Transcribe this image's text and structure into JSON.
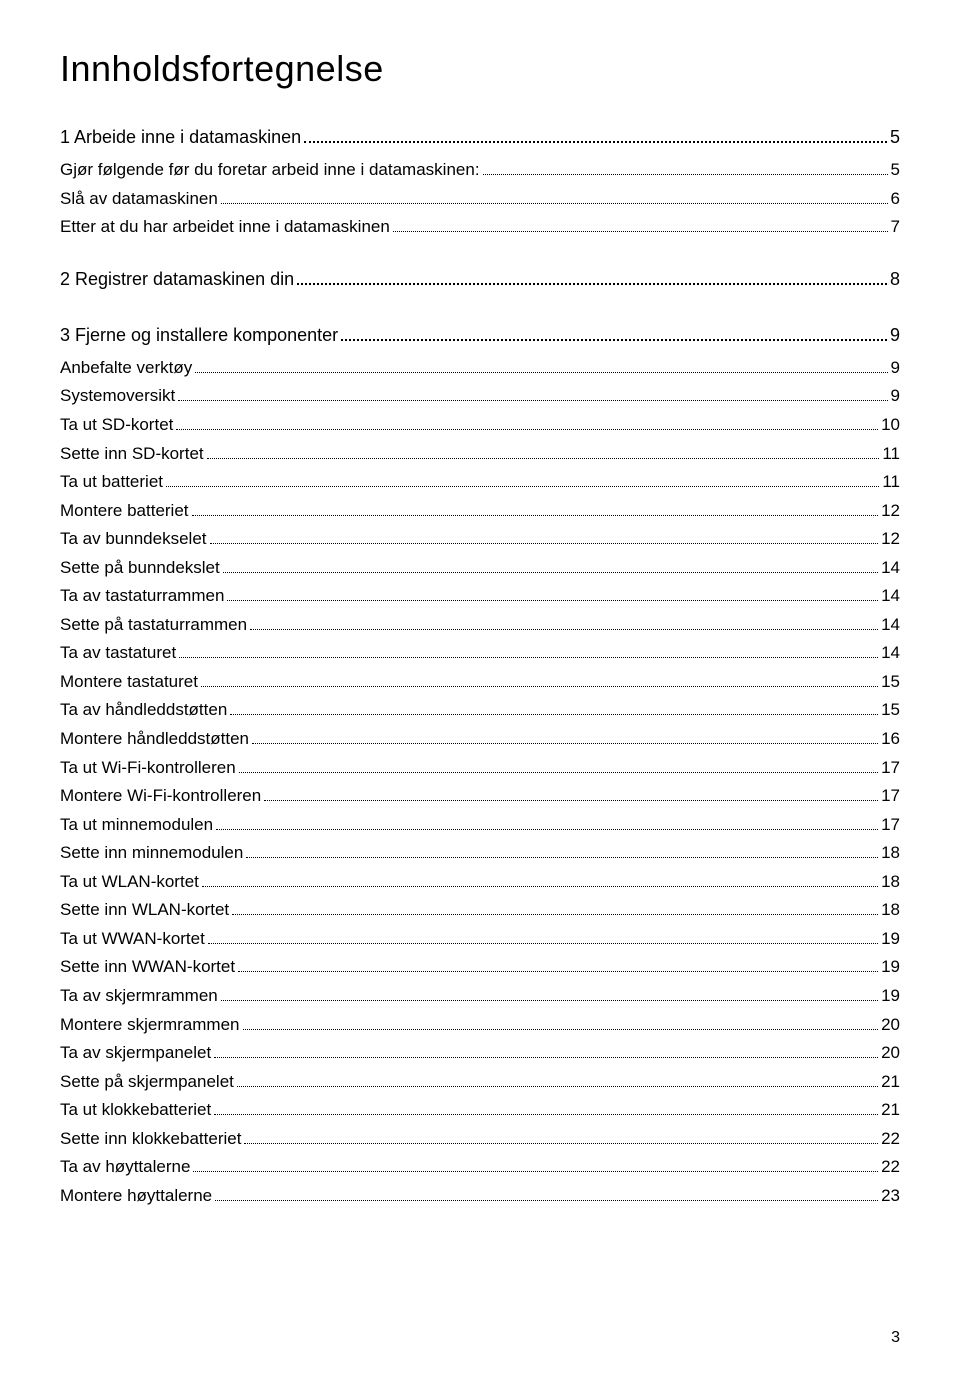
{
  "title": "Innholdsfortegnelse",
  "page_number": "3",
  "sections": [
    {
      "number": "1",
      "label": "Arbeide inne i datamaskinen",
      "page": "5",
      "items": [
        {
          "label": "Gjør følgende før du foretar arbeid inne i datamaskinen:",
          "page": "5"
        },
        {
          "label": "Slå av datamaskinen",
          "page": "6"
        },
        {
          "label": "Etter at du har arbeidet inne i datamaskinen",
          "page": "7"
        }
      ]
    },
    {
      "number": "2",
      "label": "Registrer datamaskinen din",
      "page": "8",
      "items": []
    },
    {
      "number": "3",
      "label": "Fjerne og installere komponenter",
      "page": "9",
      "items": [
        {
          "label": "Anbefalte verktøy",
          "page": "9"
        },
        {
          "label": "Systemoversikt",
          "page": "9"
        },
        {
          "label": "Ta ut SD-kortet",
          "page": "10"
        },
        {
          "label": "Sette inn SD-kortet",
          "page": "11"
        },
        {
          "label": "Ta ut batteriet",
          "page": "11"
        },
        {
          "label": "Montere batteriet",
          "page": "12"
        },
        {
          "label": "Ta av bunndekselet",
          "page": "12"
        },
        {
          "label": "Sette på bunndekslet",
          "page": "14"
        },
        {
          "label": "Ta av tastaturrammen",
          "page": "14"
        },
        {
          "label": "Sette på tastaturrammen",
          "page": "14"
        },
        {
          "label": "Ta av tastaturet",
          "page": "14"
        },
        {
          "label": "Montere tastaturet",
          "page": "15"
        },
        {
          "label": "Ta av håndleddstøtten",
          "page": "15"
        },
        {
          "label": "Montere håndleddstøtten",
          "page": "16"
        },
        {
          "label": "Ta ut Wi-Fi-kontrolleren",
          "page": "17"
        },
        {
          "label": "Montere Wi-Fi-kontrolleren",
          "page": "17"
        },
        {
          "label": "Ta ut minnemodulen",
          "page": "17"
        },
        {
          "label": "Sette inn minnemodulen",
          "page": "18"
        },
        {
          "label": "Ta ut WLAN-kortet",
          "page": "18"
        },
        {
          "label": "Sette inn WLAN-kortet",
          "page": "18"
        },
        {
          "label": "Ta ut WWAN-kortet",
          "page": "19"
        },
        {
          "label": "Sette inn WWAN-kortet",
          "page": "19"
        },
        {
          "label": "Ta av skjermrammen",
          "page": "19"
        },
        {
          "label": "Montere skjermrammen",
          "page": "20"
        },
        {
          "label": "Ta av skjermpanelet",
          "page": "20"
        },
        {
          "label": "Sette på skjermpanelet",
          "page": "21"
        },
        {
          "label": "Ta ut klokkebatteriet",
          "page": "21"
        },
        {
          "label": "Sette inn klokkebatteriet",
          "page": "22"
        },
        {
          "label": "Ta av høyttalerne",
          "page": "22"
        },
        {
          "label": "Montere høyttalerne",
          "page": "23"
        }
      ]
    }
  ]
}
